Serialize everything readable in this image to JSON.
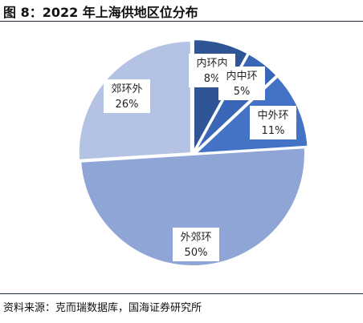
{
  "figure": {
    "title": "图 8：2022 年上海供地区位分布",
    "source": "资料来源：克而瑞数据库，国海证券研究所"
  },
  "chart_data": {
    "type": "pie",
    "title": "",
    "start_angle": 0,
    "direction": "clockwise",
    "slices": [
      {
        "name": "内环内",
        "value": 8,
        "value_label": "8%",
        "color": "#2f5597"
      },
      {
        "name": "内中环",
        "value": 5,
        "value_label": "5%",
        "color": "#3a66b8"
      },
      {
        "name": "中外环",
        "value": 11,
        "value_label": "11%",
        "color": "#4472c4"
      },
      {
        "name": "外郊环",
        "value": 50,
        "value_label": "50%",
        "color": "#8fa5d6"
      },
      {
        "name": "郊环外",
        "value": 26,
        "value_label": "26%",
        "color": "#b4c3e3"
      }
    ]
  }
}
